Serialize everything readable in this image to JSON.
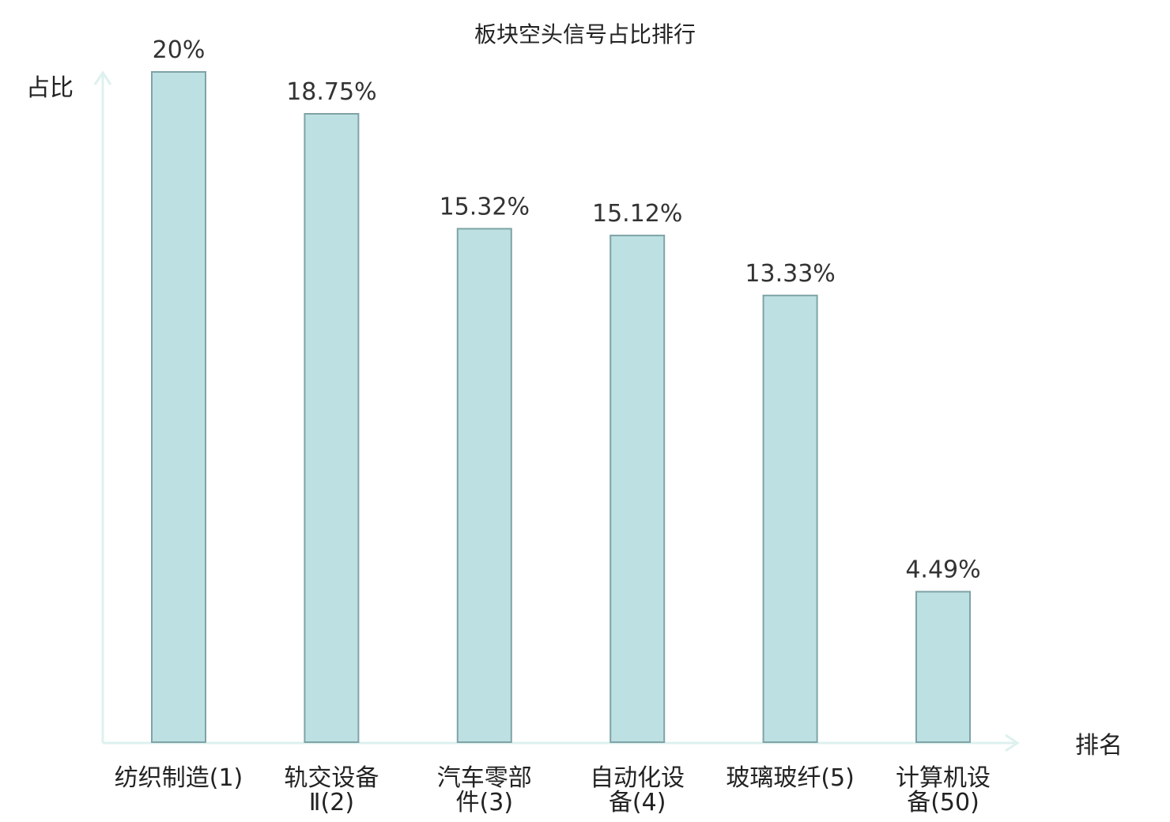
{
  "chart_data": {
    "type": "bar",
    "title": "板块空头信号占比排行",
    "xlabel": "排名",
    "ylabel": "占比",
    "categories": [
      "纺织制造(1)",
      "轨交设备Ⅱ(2)",
      "汽车零部件(3)",
      "自动化设备(4)",
      "玻璃玻纤(5)",
      "计算机设备(50)"
    ],
    "category_lines": [
      [
        "纺织制造(1)"
      ],
      [
        "轨交设备",
        "Ⅱ(2)"
      ],
      [
        "汽车零部",
        "件(3)"
      ],
      [
        "自动化设",
        "备(4)"
      ],
      [
        "玻璃玻纤(5)"
      ],
      [
        "计算机设",
        "备(50)"
      ]
    ],
    "values": [
      20,
      18.75,
      15.32,
      15.12,
      13.33,
      4.49
    ],
    "value_labels": [
      "20%",
      "18.75%",
      "15.32%",
      "15.12%",
      "13.33%",
      "4.49%"
    ],
    "highlight_index": 5,
    "ylim": [
      0,
      20
    ],
    "grid": false,
    "colors": {
      "bar_fill": "#bde0e2",
      "bar_stroke": "#7fa3a6",
      "axis": "#ddf1ee",
      "highlight_text": "#e0141e",
      "text": "#222222"
    }
  }
}
